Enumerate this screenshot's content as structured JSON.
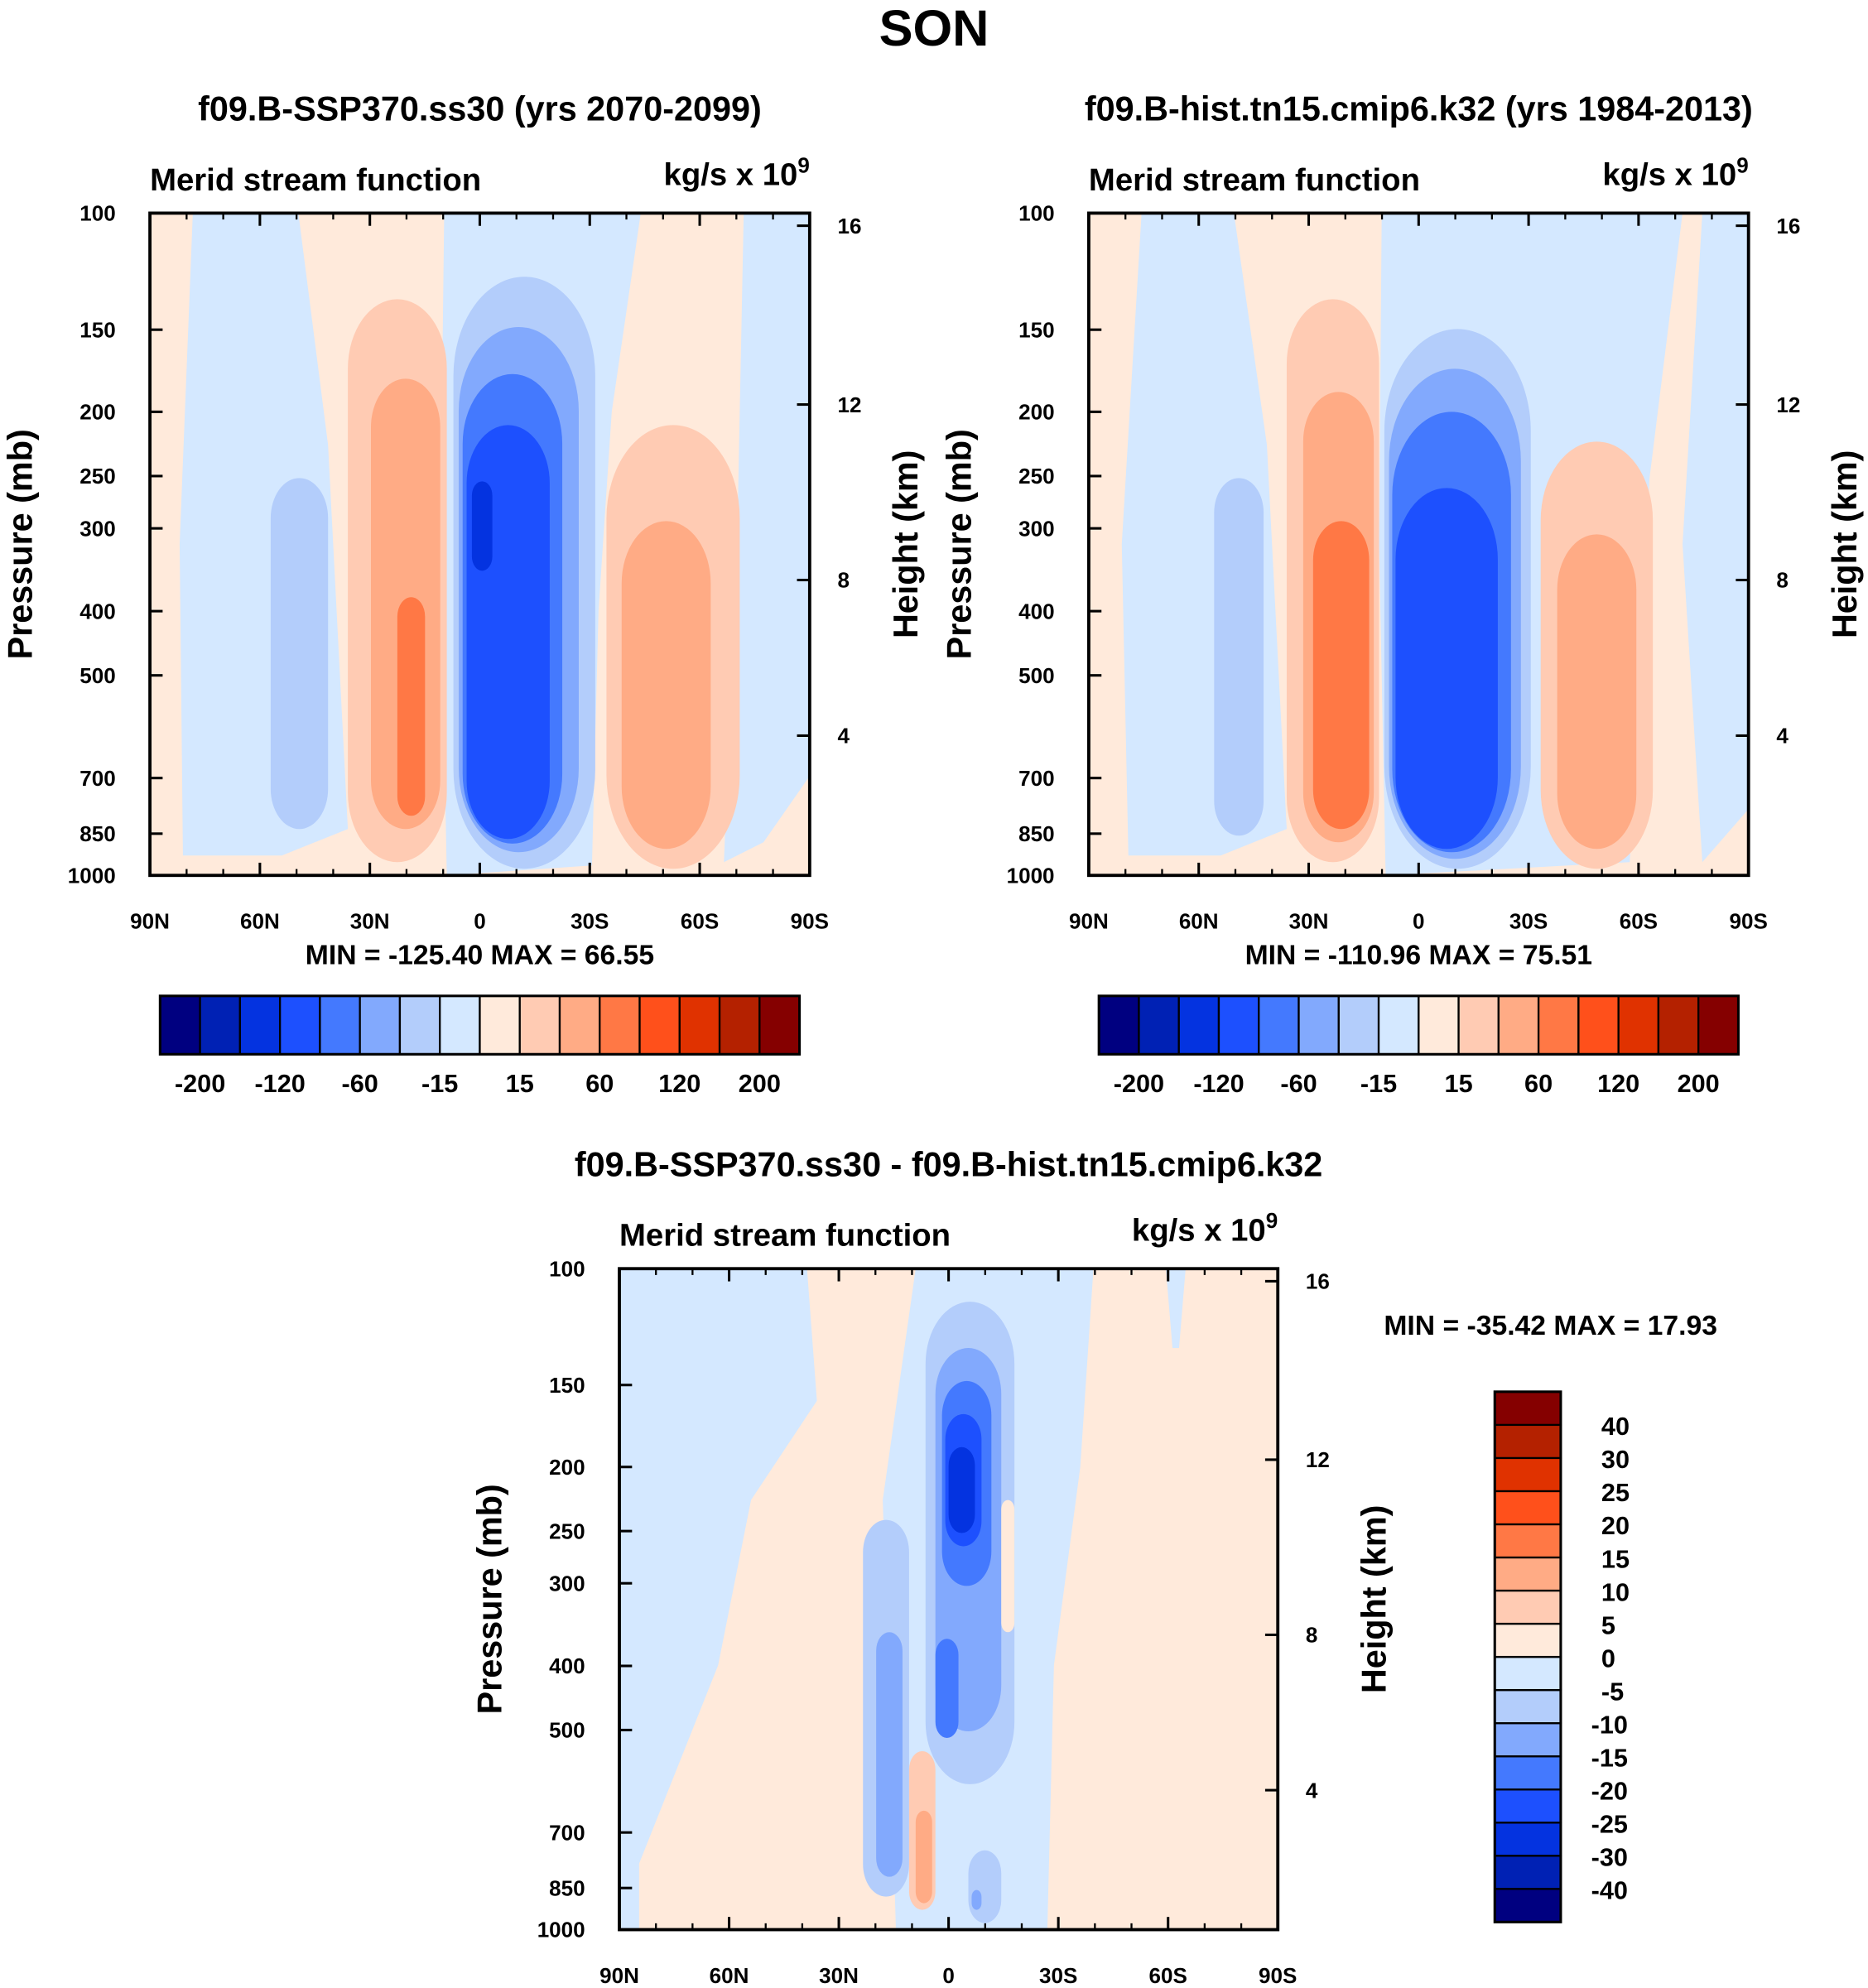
{
  "figure_title": "SON",
  "colors": {
    "main_levels": [
      "#000080",
      "#0021b4",
      "#0433e0",
      "#1d50fe",
      "#4479fe",
      "#82a9fd",
      "#b3cdfb",
      "#d4e8ff",
      "#ffeadb",
      "#ffcbb3",
      "#ffab85",
      "#ff7845",
      "#ff501b",
      "#e03200",
      "#b42100",
      "#850000"
    ],
    "diff_levels": [
      "#000080",
      "#0021b4",
      "#0433e0",
      "#1d50fe",
      "#4479fe",
      "#82a9fd",
      "#b3cdfb",
      "#d4e8ff",
      "#ffeadb",
      "#ffcbb3",
      "#ffab85",
      "#ff7845",
      "#ff501b",
      "#e03200",
      "#b42100",
      "#850000"
    ]
  },
  "chart_data": [
    {
      "type": "heatmap",
      "title": "f09.B-SSP370.ss30 (yrs 2070-2099)",
      "subtitle_left": "Merid stream function",
      "units": "kg/s x 10",
      "units_exp": "9",
      "ylabel": "Pressure (mb)",
      "ylabel_right": "Height (km)",
      "x_ticks": [
        "90N",
        "60N",
        "30N",
        "0",
        "30S",
        "60S",
        "90S"
      ],
      "y_ticks": [
        "100",
        "150",
        "200",
        "250",
        "300",
        "400",
        "500",
        "700",
        "850",
        "1000"
      ],
      "y_right_ticks": [
        "16",
        "12",
        "8",
        "4"
      ],
      "xlim": [
        90,
        -90
      ],
      "ylim": [
        1000,
        100
      ],
      "stats": "MIN = -125.40   MAX =  66.55",
      "min": -125.4,
      "max": 66.55,
      "colorbar_labels": [
        "-200",
        "-120",
        "-60",
        "-15",
        "15",
        "60",
        "120",
        "200"
      ]
    },
    {
      "type": "heatmap",
      "title": "f09.B-hist.tn15.cmip6.k32 (yrs 1984-2013)",
      "subtitle_left": "Merid stream function",
      "units": "kg/s x 10",
      "units_exp": "9",
      "ylabel": "Pressure (mb)",
      "ylabel_right": "Height (km)",
      "x_ticks": [
        "90N",
        "60N",
        "30N",
        "0",
        "30S",
        "60S",
        "90S"
      ],
      "y_ticks": [
        "100",
        "150",
        "200",
        "250",
        "300",
        "400",
        "500",
        "700",
        "850",
        "1000"
      ],
      "y_right_ticks": [
        "16",
        "12",
        "8",
        "4"
      ],
      "xlim": [
        90,
        -90
      ],
      "ylim": [
        1000,
        100
      ],
      "stats": "MIN = -110.96   MAX =  75.51",
      "min": -110.96,
      "max": 75.51,
      "colorbar_labels": [
        "-200",
        "-120",
        "-60",
        "-15",
        "15",
        "60",
        "120",
        "200"
      ]
    },
    {
      "type": "heatmap",
      "title": "f09.B-SSP370.ss30 - f09.B-hist.tn15.cmip6.k32",
      "subtitle_left": "Merid stream function",
      "units": "kg/s x 10",
      "units_exp": "9",
      "ylabel": "Pressure (mb)",
      "ylabel_right": "Height (km)",
      "x_ticks": [
        "90N",
        "60N",
        "30N",
        "0",
        "30S",
        "60S",
        "90S"
      ],
      "y_ticks": [
        "100",
        "150",
        "200",
        "250",
        "300",
        "400",
        "500",
        "700",
        "850",
        "1000"
      ],
      "y_right_ticks": [
        "16",
        "12",
        "8",
        "4"
      ],
      "xlim": [
        90,
        -90
      ],
      "ylim": [
        1000,
        100
      ],
      "stats": "MIN = -35.42   MAX =  17.93",
      "min": -35.42,
      "max": 17.93,
      "colorbar_labels": [
        "40",
        "30",
        "25",
        "20",
        "15",
        "10",
        "5",
        "0",
        "-5",
        "-10",
        "-15",
        "-20",
        "-25",
        "-30",
        "-40"
      ]
    }
  ]
}
